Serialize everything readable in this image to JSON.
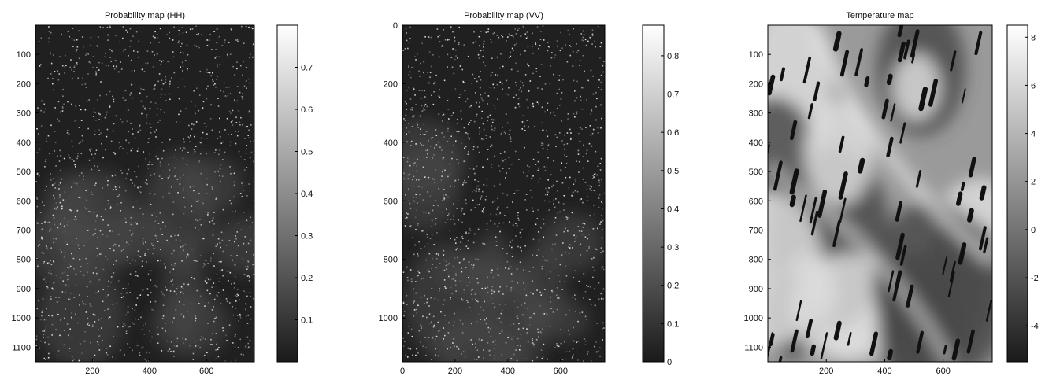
{
  "chart_data": [
    {
      "type": "heatmap",
      "title": "Probability map (HH)",
      "colormap": "gray",
      "xlim": [
        0,
        768
      ],
      "ylim": [
        1150,
        0
      ],
      "xticks": [
        200,
        400,
        600
      ],
      "yticks": [
        100,
        200,
        300,
        400,
        500,
        600,
        700,
        800,
        900,
        1000,
        1100
      ],
      "xtick_labels": [
        "200",
        "400",
        "600"
      ],
      "ytick_labels": [
        "100",
        "200",
        "300",
        "400",
        "500",
        "600",
        "700",
        "800",
        "900",
        "1000",
        "1100"
      ],
      "colorbar": {
        "range": [
          0,
          0.8
        ],
        "ticks": [
          0.1,
          0.2,
          0.3,
          0.4,
          0.5,
          0.6,
          0.7
        ],
        "tick_labels": [
          "0.1",
          "0.2",
          "0.3",
          "0.4",
          "0.5",
          "0.6",
          "0.7"
        ]
      }
    },
    {
      "type": "heatmap",
      "title": "Probability map (VV)",
      "colormap": "gray",
      "xlim": [
        0,
        768
      ],
      "ylim": [
        1150,
        0
      ],
      "xticks": [
        0,
        200,
        400,
        600
      ],
      "yticks": [
        0,
        200,
        400,
        600,
        800,
        1000
      ],
      "xtick_labels": [
        "0",
        "200",
        "400",
        "600"
      ],
      "ytick_labels": [
        "0",
        "200",
        "400",
        "600",
        "800",
        "1000"
      ],
      "colorbar": {
        "range": [
          0,
          0.88
        ],
        "ticks": [
          0,
          0.1,
          0.2,
          0.3,
          0.4,
          0.5,
          0.6,
          0.7,
          0.8
        ],
        "tick_labels": [
          "0",
          "0.1",
          "0.2",
          "0.3",
          "0.4",
          "0.5",
          "0.6",
          "0.7",
          "0.8"
        ]
      }
    },
    {
      "type": "heatmap",
      "title": "Temperature map",
      "colormap": "gray",
      "xlim": [
        0,
        768
      ],
      "ylim": [
        1150,
        0
      ],
      "xticks": [
        200,
        400,
        600
      ],
      "yticks": [
        100,
        200,
        300,
        400,
        500,
        600,
        700,
        800,
        900,
        1000,
        1100
      ],
      "xtick_labels": [
        "200",
        "400",
        "600"
      ],
      "ytick_labels": [
        "100",
        "200",
        "300",
        "400",
        "500",
        "600",
        "700",
        "800",
        "900",
        "1000",
        "1100"
      ],
      "colorbar": {
        "range": [
          -5.5,
          8.5
        ],
        "ticks": [
          -4,
          -2,
          0,
          2,
          4,
          6,
          8
        ],
        "tick_labels": [
          "-4",
          "-2",
          "0",
          "2",
          "4",
          "6",
          "8"
        ]
      }
    }
  ]
}
